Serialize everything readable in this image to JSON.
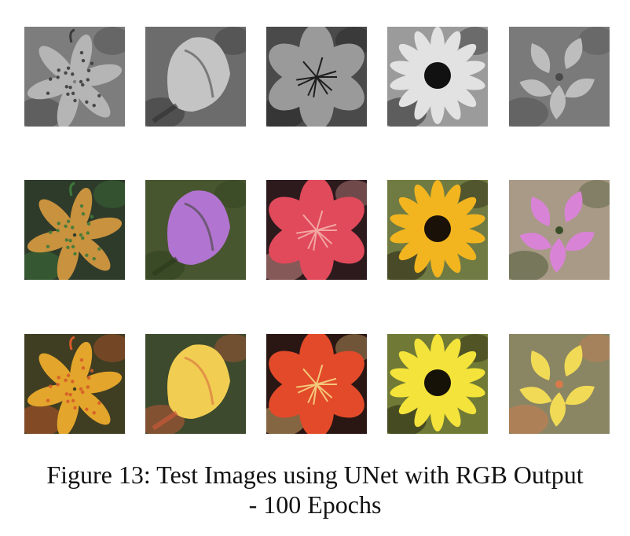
{
  "figure": {
    "caption_line1": "Figure 13: Test Images using UNet with RGB Output",
    "caption_line2": "- 100 Epochs"
  },
  "grid": {
    "rows": [
      {
        "row": "grayscale input",
        "images": [
          {
            "subject": "spotted lily",
            "palette": [
              "#7d7d7d",
              "#b5b5b5",
              "#3c3c3c"
            ]
          },
          {
            "subject": "pink tulip-like flower",
            "palette": [
              "#6c6c6c",
              "#c4c4c4",
              "#2f2f2f"
            ]
          },
          {
            "subject": "alstroemeria",
            "palette": [
              "#4a4a4a",
              "#9a9a9a",
              "#1e1e1e"
            ]
          },
          {
            "subject": "black-eyed susan",
            "palette": [
              "#9b9b9b",
              "#e2e2e2",
              "#111111"
            ]
          },
          {
            "subject": "bougainvillea",
            "palette": [
              "#7a7a7a",
              "#bdbdbd",
              "#4a4a4a"
            ]
          }
        ]
      },
      {
        "row": "ground truth color",
        "images": [
          {
            "subject": "spotted lily",
            "palette": [
              "#2e3b2b",
              "#c9923e",
              "#3e7a3a"
            ]
          },
          {
            "subject": "pink tulip-like flower",
            "palette": [
              "#48562f",
              "#b174d0",
              "#2b3b1c"
            ]
          },
          {
            "subject": "alstroemeria",
            "palette": [
              "#2c1a1d",
              "#e04a5a",
              "#f2a6a0"
            ]
          },
          {
            "subject": "black-eyed susan",
            "palette": [
              "#6f7b43",
              "#f2b51f",
              "#1a1208"
            ]
          },
          {
            "subject": "bougainvillea",
            "palette": [
              "#a89a86",
              "#d983d6",
              "#3b4e2a"
            ]
          }
        ]
      },
      {
        "row": "UNet RGB prediction",
        "images": [
          {
            "subject": "spotted lily",
            "palette": [
              "#3f3d22",
              "#e3a52b",
              "#d45b2a"
            ]
          },
          {
            "subject": "pink tulip-like flower",
            "palette": [
              "#3d4a2d",
              "#f1cd52",
              "#d45a3a"
            ]
          },
          {
            "subject": "alstroemeria",
            "palette": [
              "#2a1714",
              "#e24a2a",
              "#f4c87a"
            ]
          },
          {
            "subject": "black-eyed susan",
            "palette": [
              "#707a36",
              "#f4e33a",
              "#161208"
            ]
          },
          {
            "subject": "bougainvillea",
            "palette": [
              "#8a8664",
              "#f1da55",
              "#d87a4a"
            ]
          }
        ]
      }
    ]
  }
}
